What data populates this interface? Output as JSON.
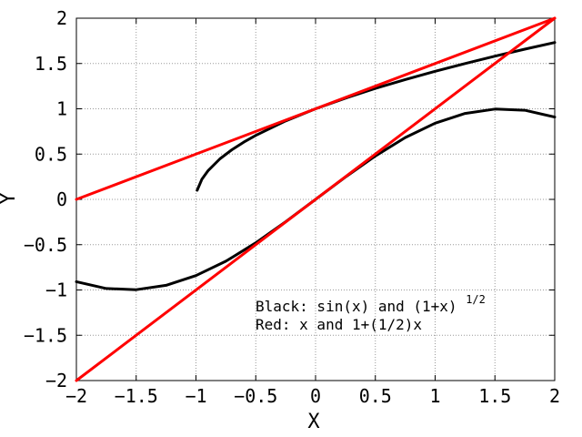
{
  "chart_data": {
    "type": "line",
    "xlabel": "X",
    "ylabel": "Y",
    "xlim": [
      -2,
      2
    ],
    "ylim": [
      -2,
      2
    ],
    "grid": true,
    "xticks": [
      -2,
      -1.5,
      -1,
      -0.5,
      0,
      0.5,
      1,
      1.5,
      2
    ],
    "yticks": [
      -2,
      -1.5,
      -1,
      -0.5,
      0,
      0.5,
      1,
      1.5,
      2
    ],
    "xtick_labels": [
      "−2",
      "−1.5",
      "−1",
      "−0.5",
      "0",
      "0.5",
      "1",
      "1.5",
      "2"
    ],
    "ytick_labels": [
      "−2",
      "−1.5",
      "−1",
      "−0.5",
      "0",
      "0.5",
      "1",
      "1.5",
      "2"
    ],
    "annotations": [
      {
        "text": "Black: sin(x) and (1+x)",
        "superscript": "1/2"
      },
      {
        "text": "Red: x and 1+(1/2)x"
      }
    ],
    "series": [
      {
        "color": "#000000",
        "x": [
          -2,
          -1.75,
          -1.5,
          -1.25,
          -1,
          -0.75,
          -0.5,
          -0.25,
          0,
          0.25,
          0.5,
          0.75,
          1,
          1.25,
          1.5,
          1.75,
          2
        ],
        "y": [
          -0.909,
          -0.984,
          -0.997,
          -0.949,
          -0.841,
          -0.682,
          -0.479,
          -0.247,
          0,
          0.247,
          0.479,
          0.682,
          0.841,
          0.949,
          0.997,
          0.984,
          0.909
        ]
      },
      {
        "color": "#000000",
        "x": [
          -0.99,
          -0.95,
          -0.9,
          -0.8,
          -0.7,
          -0.6,
          -0.5,
          -0.25,
          0,
          0.25,
          0.5,
          0.75,
          1,
          1.25,
          1.5,
          1.75,
          2
        ],
        "y": [
          0.1,
          0.224,
          0.316,
          0.447,
          0.548,
          0.632,
          0.707,
          0.866,
          1,
          1.118,
          1.225,
          1.323,
          1.414,
          1.5,
          1.581,
          1.658,
          1.732
        ]
      },
      {
        "color": "#ff0000",
        "x": [
          -2,
          2
        ],
        "y": [
          -2,
          2
        ]
      },
      {
        "color": "#ff0000",
        "x": [
          -2,
          2
        ],
        "y": [
          0,
          2
        ]
      }
    ]
  }
}
